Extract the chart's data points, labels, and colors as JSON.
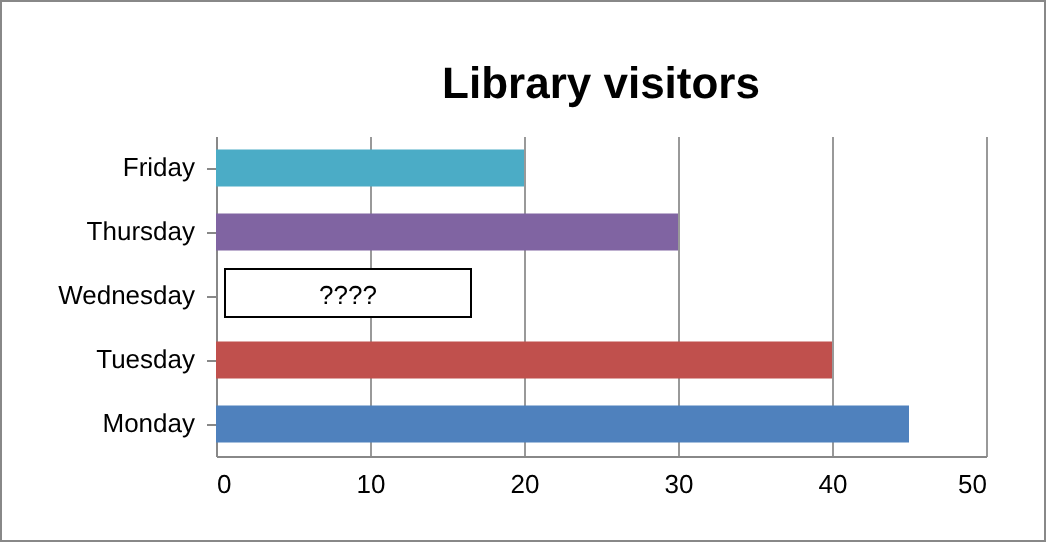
{
  "chart_data": {
    "type": "bar",
    "orientation": "horizontal",
    "title": "Library visitors",
    "categories": [
      "Friday",
      "Thursday",
      "Wednesday",
      "Tuesday",
      "Monday"
    ],
    "values": [
      20,
      30,
      null,
      40,
      45
    ],
    "colors": [
      "#4bacc6",
      "#8064a2",
      "#ffffff",
      "#c0504d",
      "#4f81bd"
    ],
    "xlim": [
      0,
      50
    ],
    "xticks": [
      0,
      10,
      20,
      30,
      40,
      50
    ],
    "grid": "x",
    "annotations": [
      "????"
    ]
  }
}
